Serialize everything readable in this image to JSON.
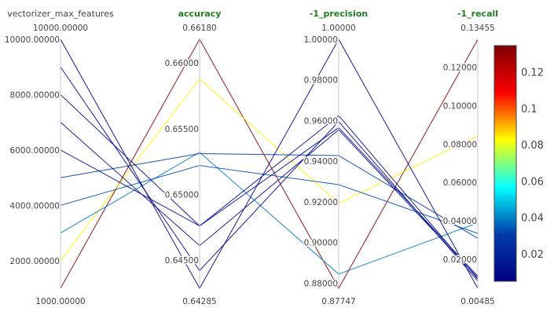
{
  "chart_data": {
    "type": "parallel_coordinates",
    "dimensions": [
      {
        "key": "vectorizer_max_features",
        "label": "vectorizer_max_features",
        "highlight": false,
        "min": 1000,
        "max": 10000,
        "min_label": "1000.00000",
        "max_label": "10000.00000",
        "ticks": [
          {
            "value": 2000,
            "label": "2000.00000"
          },
          {
            "value": 4000,
            "label": "4000.00000"
          },
          {
            "value": 6000,
            "label": "6000.00000"
          },
          {
            "value": 8000,
            "label": "8000.00000"
          },
          {
            "value": 10000,
            "label": "10000.00000"
          }
        ]
      },
      {
        "key": "accuracy",
        "label": "accuracy",
        "highlight": true,
        "min": 0.64285,
        "max": 0.6618,
        "min_label": "0.64285",
        "max_label": "0.66180",
        "ticks": [
          {
            "value": 0.645,
            "label": "0.64500"
          },
          {
            "value": 0.65,
            "label": "0.65000"
          },
          {
            "value": 0.655,
            "label": "0.65500"
          },
          {
            "value": 0.66,
            "label": "0.66000"
          }
        ]
      },
      {
        "key": "neg1_precision",
        "label": "-1_precision",
        "highlight": true,
        "min": 0.87747,
        "max": 1.0,
        "min_label": "0.87747",
        "max_label": "1.00000",
        "ticks": [
          {
            "value": 0.88,
            "label": "0.88000"
          },
          {
            "value": 0.9,
            "label": "0.90000"
          },
          {
            "value": 0.92,
            "label": "0.92000"
          },
          {
            "value": 0.94,
            "label": "0.94000"
          },
          {
            "value": 0.96,
            "label": "0.96000"
          },
          {
            "value": 0.98,
            "label": "0.98000"
          },
          {
            "value": 1.0,
            "label": "1.00000"
          }
        ]
      },
      {
        "key": "neg1_recall",
        "label": "-1_recall",
        "highlight": true,
        "min": 0.00485,
        "max": 0.13455,
        "min_label": "0.00485",
        "max_label": "0.13455",
        "ticks": [
          {
            "value": 0.02,
            "label": "0.02000"
          },
          {
            "value": 0.04,
            "label": "0.04000"
          },
          {
            "value": 0.06,
            "label": "0.06000"
          },
          {
            "value": 0.08,
            "label": "0.08000"
          },
          {
            "value": 0.1,
            "label": "0.10000"
          },
          {
            "value": 0.12,
            "label": "0.12000"
          }
        ]
      }
    ],
    "rows": [
      {
        "vectorizer_max_features": 1000,
        "accuracy": 0.6618,
        "neg1_precision": 0.87747,
        "neg1_recall": 0.13455
      },
      {
        "vectorizer_max_features": 2000,
        "accuracy": 0.6588,
        "neg1_precision": 0.9193,
        "neg1_recall": 0.0842
      },
      {
        "vectorizer_max_features": 3000,
        "accuracy": 0.6532,
        "neg1_precision": 0.8845,
        "neg1_recall": 0.0389
      },
      {
        "vectorizer_max_features": 4000,
        "accuracy": 0.6522,
        "neg1_precision": 0.9285,
        "neg1_recall": 0.0335
      },
      {
        "vectorizer_max_features": 5000,
        "accuracy": 0.6531,
        "neg1_precision": 0.9428,
        "neg1_recall": 0.0309
      },
      {
        "vectorizer_max_features": 6000,
        "accuracy": 0.6476,
        "neg1_precision": 0.9565,
        "neg1_recall": 0.0112
      },
      {
        "vectorizer_max_features": 7000,
        "accuracy": 0.6461,
        "neg1_precision": 0.9555,
        "neg1_recall": 0.0104
      },
      {
        "vectorizer_max_features": 8000,
        "accuracy": 0.6476,
        "neg1_precision": 0.9625,
        "neg1_recall": 0.0097
      },
      {
        "vectorizer_max_features": 9000,
        "accuracy": 0.6442,
        "neg1_precision": 0.9595,
        "neg1_recall": 0.0087
      },
      {
        "vectorizer_max_features": 10000,
        "accuracy": 0.64285,
        "neg1_precision": 1.0,
        "neg1_recall": 0.00485
      }
    ],
    "color_by": "neg1_recall",
    "colorbar": {
      "min": 0.00485,
      "max": 0.13455,
      "ticks": [
        {
          "value": 0.02,
          "label": "0.02"
        },
        {
          "value": 0.04,
          "label": "0.04"
        },
        {
          "value": 0.06,
          "label": "0.06"
        },
        {
          "value": 0.08,
          "label": "0.08"
        },
        {
          "value": 0.1,
          "label": "0.1"
        },
        {
          "value": 0.12,
          "label": "0.12"
        }
      ],
      "colorscale": [
        "#000083",
        "#003caa",
        "#05ffff",
        "#ffff00",
        "#fa0000",
        "#800000"
      ]
    },
    "axis_color": "#c8c8c8"
  }
}
